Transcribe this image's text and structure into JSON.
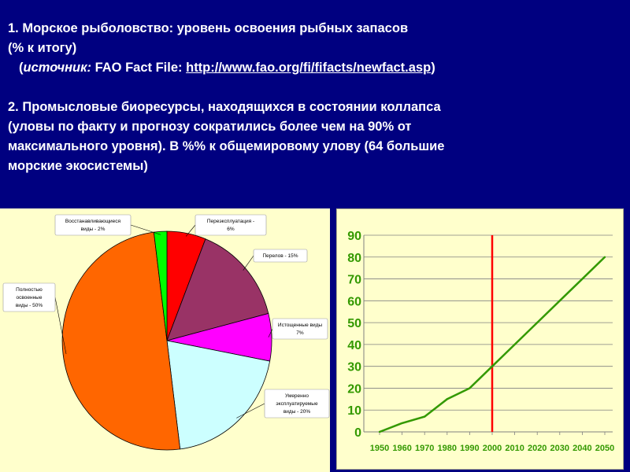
{
  "header": {
    "line1": "1.  Морское рыболовство: уровень освоения рыбных запасов",
    "line2": "(% к итогу)",
    "line3_prefix": "(",
    "line3_source": "источник:",
    "line3_mid": "  FAO Fact File: ",
    "line3_link": "http://www.fao.org/fi/fifacts/newfact.asp",
    "line3_suffix": ")",
    "line4": "2. Промысловые биоресурсы, находящихся в состоянии коллапса",
    "line5": "(уловы  по факту и прогнозу сократились  более чем на 90% от",
    "line6": "максимального уровня).  В %% к общемировому улову (64  большие",
    "line7": "морские экосистемы)"
  },
  "chart_data": [
    {
      "type": "pie",
      "slices": [
        {
          "label_lines": [
            "Переэксплуатация -",
            "6%"
          ],
          "value": 6,
          "color": "#ff0000"
        },
        {
          "label_lines": [
            "Перелов - 15%"
          ],
          "value": 15,
          "color": "#993366"
        },
        {
          "label_lines": [
            "Истощенные виды",
            "7%"
          ],
          "value": 7,
          "color": "#ff00ff"
        },
        {
          "label_lines": [
            "Умеренно",
            "эксплуатируемые",
            "виды - 20%"
          ],
          "value": 20,
          "color": "#ccffff"
        },
        {
          "label_lines": [
            "Полностью",
            "освоенные",
            "виды - 50%"
          ],
          "value": 50,
          "color": "#ff6600"
        },
        {
          "label_lines": [
            "Восстанавливающиеся",
            "виды - 2%"
          ],
          "value": 2,
          "color": "#00ff00"
        }
      ]
    },
    {
      "type": "line",
      "x": [
        1950,
        1960,
        1970,
        1980,
        1990,
        2000,
        2010,
        2020,
        2030,
        2040,
        2050
      ],
      "y": [
        0,
        4,
        7,
        15,
        20,
        30,
        40,
        50,
        60,
        70,
        80
      ],
      "series_color": "#339900",
      "ylim": [
        0,
        90
      ],
      "yticks": [
        0,
        10,
        20,
        30,
        40,
        50,
        60,
        70,
        80,
        90
      ],
      "xticks": [
        "1950",
        "1960",
        "1970",
        "1980",
        "1990",
        "2000",
        "2010",
        "2020",
        "2030",
        "2040",
        "2050"
      ],
      "vertical_marker_x": 2000,
      "marker_color": "#ff0000",
      "grid": "horizontal"
    }
  ]
}
